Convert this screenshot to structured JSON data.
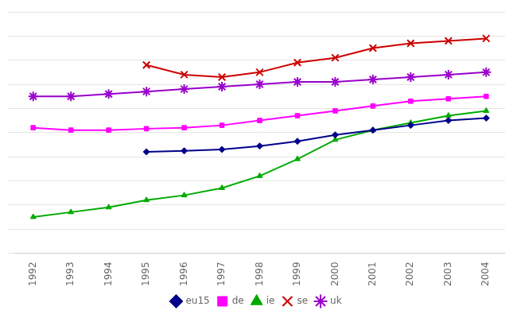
{
  "chart_data": {
    "type": "line",
    "x": [
      1992,
      1993,
      1994,
      1995,
      1996,
      1997,
      1998,
      1999,
      2000,
      2001,
      2002,
      2003,
      2004
    ],
    "series": [
      {
        "name": "eu15",
        "color": "#00008B",
        "marker": "diamond",
        "values": [
          null,
          null,
          null,
          51.0,
          51.2,
          51.5,
          52.2,
          53.2,
          54.5,
          55.5,
          56.5,
          57.5,
          58.0
        ]
      },
      {
        "name": "de",
        "color": "#FF00FF",
        "marker": "square",
        "values": [
          56.0,
          55.5,
          55.5,
          55.8,
          56.0,
          56.5,
          57.5,
          58.5,
          59.5,
          60.5,
          61.5,
          62.0,
          62.5
        ]
      },
      {
        "name": "ie",
        "color": "#00AA00",
        "marker": "triangle",
        "values": [
          37.5,
          38.5,
          39.5,
          41.0,
          42.0,
          43.5,
          46.0,
          49.5,
          53.5,
          55.5,
          57.0,
          58.5,
          59.5
        ]
      },
      {
        "name": "se",
        "color": "#CC0000",
        "marker": "x",
        "values": [
          null,
          null,
          null,
          69.0,
          67.0,
          66.5,
          67.5,
          69.5,
          70.5,
          72.5,
          73.5,
          74.0,
          74.5
        ]
      },
      {
        "name": "uk",
        "color": "#9900CC",
        "marker": "star",
        "values": [
          62.5,
          62.5,
          63.0,
          63.5,
          64.0,
          64.5,
          65.0,
          65.5,
          65.5,
          66.0,
          66.5,
          67.0,
          67.5
        ]
      }
    ],
    "xlim": [
      1991.5,
      2004.5
    ],
    "xticks": [
      1992,
      1993,
      1994,
      1995,
      1996,
      1997,
      1998,
      1999,
      2000,
      2001,
      2002,
      2003,
      2004
    ],
    "ylim": [
      30,
      80
    ],
    "yticks": [
      30,
      35,
      40,
      45,
      50,
      55,
      60,
      65,
      70,
      75,
      80
    ],
    "tick_labels": "x",
    "grid": "y",
    "legend": "bottom"
  }
}
